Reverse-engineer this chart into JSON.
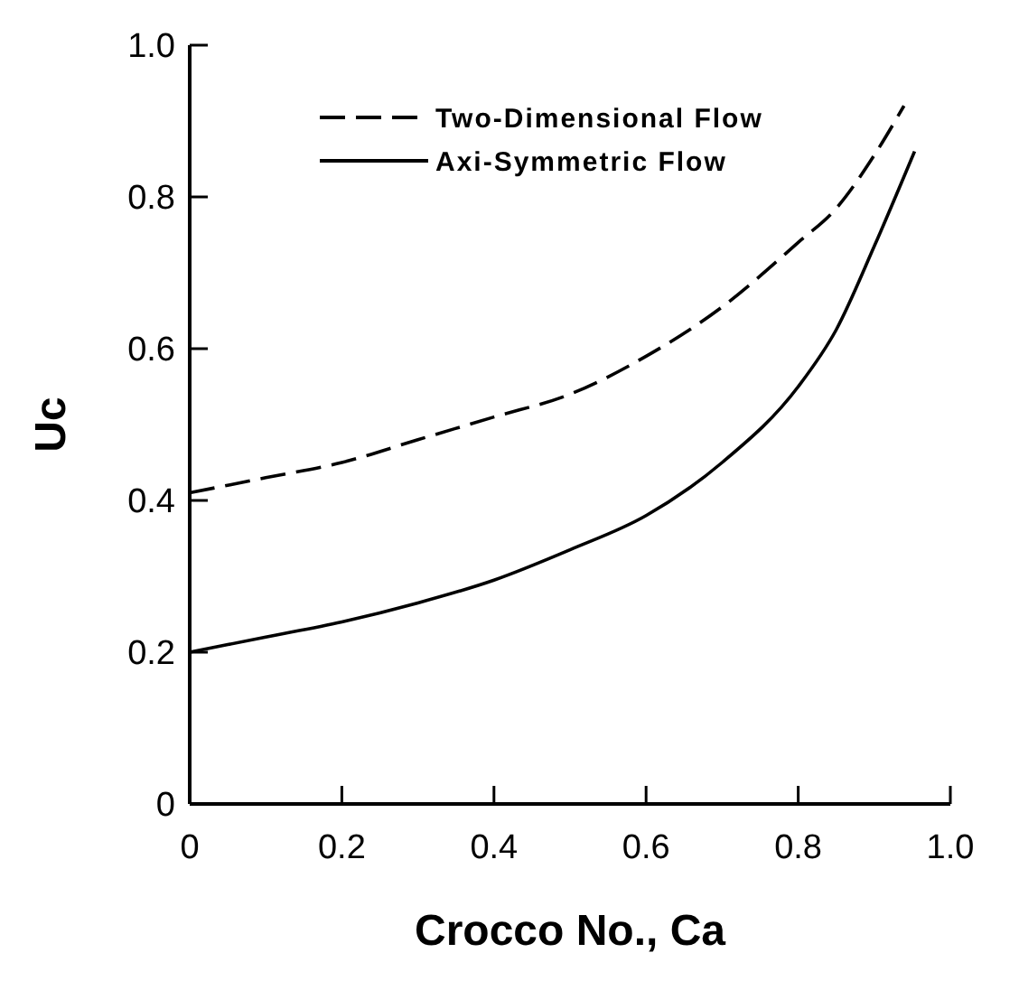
{
  "chart_data": {
    "type": "line",
    "xlabel": "Crocco No., Ca",
    "ylabel": "Uc",
    "xlim": [
      0,
      1
    ],
    "ylim": [
      0,
      1
    ],
    "xticks": [
      0,
      0.2,
      0.4,
      0.6,
      0.8,
      {
        "value": 1,
        "label": "1.0"
      }
    ],
    "yticks": [
      0,
      0.2,
      0.4,
      0.6,
      0.8,
      {
        "value": 1,
        "label": "1.0"
      }
    ],
    "grid": false,
    "legend": "top",
    "series": [
      {
        "name": "Two-Dimensional Flow",
        "color": "#000000",
        "line_style": "dashed",
        "x": [
          0,
          0.1,
          0.2,
          0.3,
          0.4,
          0.5,
          0.6,
          0.7,
          0.8,
          0.85,
          0.9,
          0.939
        ],
        "values": [
          0.41,
          0.43,
          0.45,
          0.48,
          0.51,
          0.54,
          0.59,
          0.655,
          0.74,
          0.785,
          0.855,
          0.92
        ]
      },
      {
        "name": "Axi-Symmetric Flow",
        "color": "#000000",
        "line_style": "solid",
        "x": [
          0,
          0.1,
          0.2,
          0.3,
          0.4,
          0.5,
          0.6,
          0.7,
          0.8,
          0.85,
          0.9,
          0.953
        ],
        "values": [
          0.2,
          0.22,
          0.24,
          0.265,
          0.295,
          0.335,
          0.38,
          0.45,
          0.55,
          0.625,
          0.735,
          0.86
        ]
      }
    ]
  }
}
